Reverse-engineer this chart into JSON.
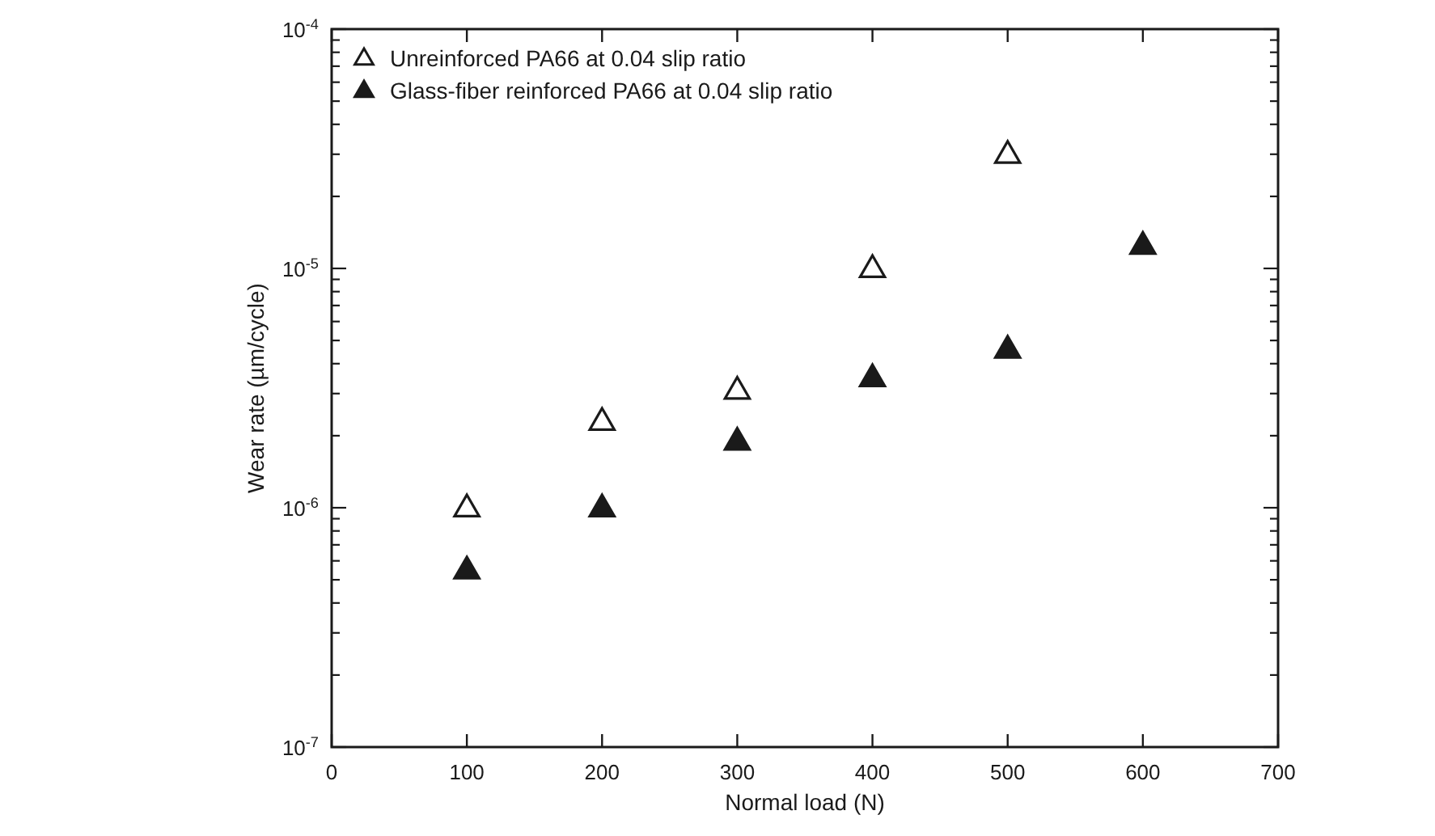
{
  "chart_data": {
    "type": "scatter",
    "xlabel": "Normal load (N)",
    "ylabel": "Wear rate (µm/cycle)",
    "log": "y",
    "marker": "triangle",
    "legend": "top left",
    "grid": false,
    "xlim": [
      0,
      700
    ],
    "xticks": [
      0,
      100,
      200,
      300,
      400,
      500,
      600,
      700
    ],
    "ylim": [
      1e-07,
      0.0001
    ],
    "yticks": [
      {
        "value": 1e-07,
        "label": "10$^{-7}$"
      },
      {
        "value": 2e-07,
        "label": null
      },
      {
        "value": 3e-07,
        "label": null
      },
      {
        "value": 4e-07,
        "label": null
      },
      {
        "value": 5e-07,
        "label": null
      },
      {
        "value": 6e-07,
        "label": null
      },
      {
        "value": 7e-07,
        "label": null
      },
      {
        "value": 8e-07,
        "label": null
      },
      {
        "value": 9e-07,
        "label": null
      },
      {
        "value": 1e-06,
        "label": "10$^{-6}$"
      },
      {
        "value": 2e-06,
        "label": null
      },
      {
        "value": 3e-06,
        "label": null
      },
      {
        "value": 4e-06,
        "label": null
      },
      {
        "value": 5e-06,
        "label": null
      },
      {
        "value": 6e-06,
        "label": null
      },
      {
        "value": 7e-06,
        "label": null
      },
      {
        "value": 8e-06,
        "label": null
      },
      {
        "value": 9e-06,
        "label": null
      },
      {
        "value": 1e-05,
        "label": "10$^{-5}$"
      },
      {
        "value": 2e-05,
        "label": null
      },
      {
        "value": 3e-05,
        "label": null
      },
      {
        "value": 4e-05,
        "label": null
      },
      {
        "value": 5e-05,
        "label": null
      },
      {
        "value": 6e-05,
        "label": null
      },
      {
        "value": 7e-05,
        "label": null
      },
      {
        "value": 8e-05,
        "label": null
      },
      {
        "value": 9e-05,
        "label": null
      },
      {
        "value": 0.0001,
        "label": "10$^{-4}$"
      }
    ],
    "series": [
      {
        "name": "Unreinforced PA66 at 0.04 slip ratio",
        "color": "#ffffff",
        "x": [
          100,
          200,
          300,
          400,
          500
        ],
        "values": [
          1e-06,
          2.3e-06,
          3.1e-06,
          1e-05,
          3e-05
        ]
      },
      {
        "name": "Glass-fiber reinforced PA66 at 0.04 slip ratio",
        "color": "#1a1a1a",
        "x": [
          100,
          200,
          300,
          400,
          500,
          600
        ],
        "values": [
          5.5e-07,
          1e-06,
          1.9e-06,
          3.5e-06,
          4.6e-06,
          1.25e-05
        ]
      }
    ]
  }
}
